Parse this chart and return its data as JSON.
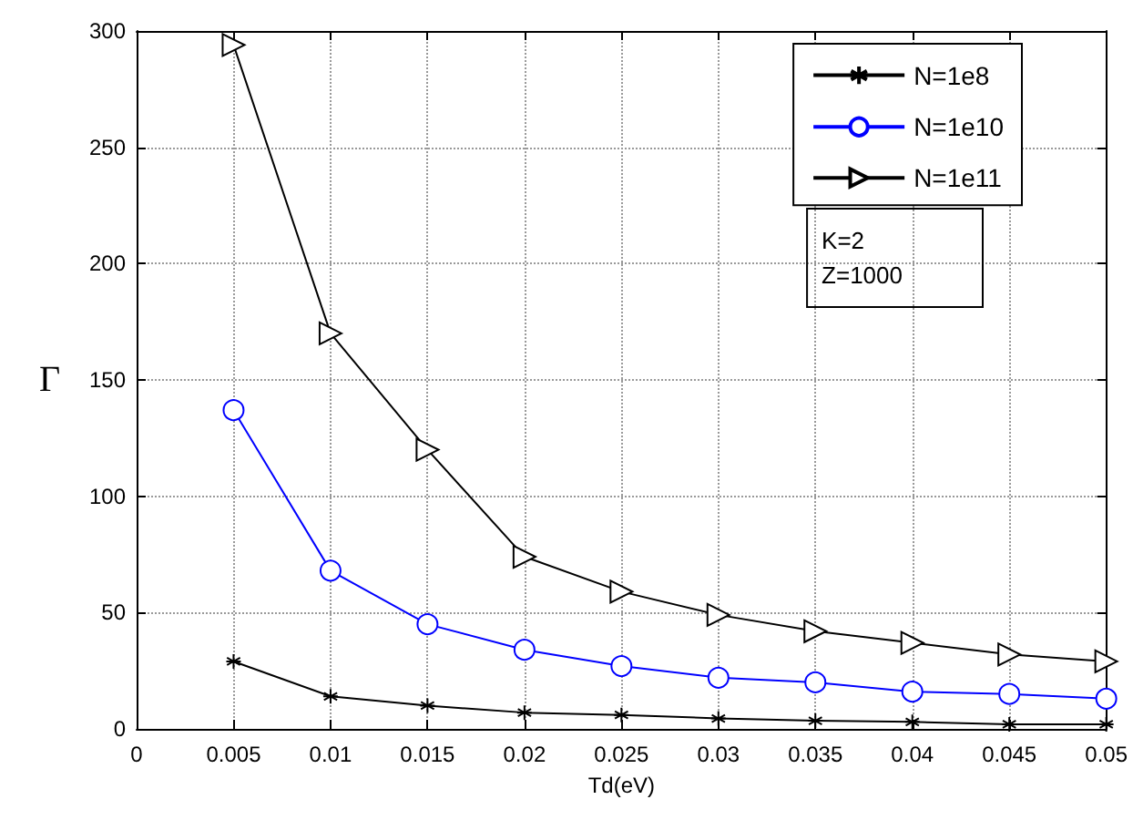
{
  "chart_data": {
    "type": "line",
    "xlabel": "Td(eV)",
    "ylabel": "Γ",
    "x": [
      0.005,
      0.01,
      0.015,
      0.02,
      0.025,
      0.03,
      0.035,
      0.04,
      0.045,
      0.05
    ],
    "series": [
      {
        "name": "N=1e8",
        "color": "#000000",
        "marker": "cross",
        "values": [
          29,
          14,
          10,
          7,
          6,
          4.5,
          3.5,
          3,
          2,
          2
        ]
      },
      {
        "name": "N=1e10",
        "color": "#0000ff",
        "marker": "circle",
        "values": [
          137,
          68,
          45,
          34,
          27,
          22,
          20,
          16,
          15,
          13
        ]
      },
      {
        "name": "N=1e11",
        "color": "#000000",
        "marker": "triangle",
        "values": [
          294,
          170,
          120,
          74,
          59,
          49,
          42,
          37,
          32,
          29
        ]
      }
    ],
    "xlim": [
      0,
      0.05
    ],
    "xticks": [
      0,
      0.005,
      0.01,
      0.015,
      0.02,
      0.025,
      0.03,
      0.035,
      0.04,
      0.045,
      0.05
    ],
    "ylim": [
      0,
      300
    ],
    "yticks": [
      0,
      50,
      100,
      150,
      200,
      250,
      300
    ],
    "grid": true,
    "legend": "top right",
    "line_style": "solid",
    "annotations": [
      "K=2\nZ=1000"
    ]
  }
}
